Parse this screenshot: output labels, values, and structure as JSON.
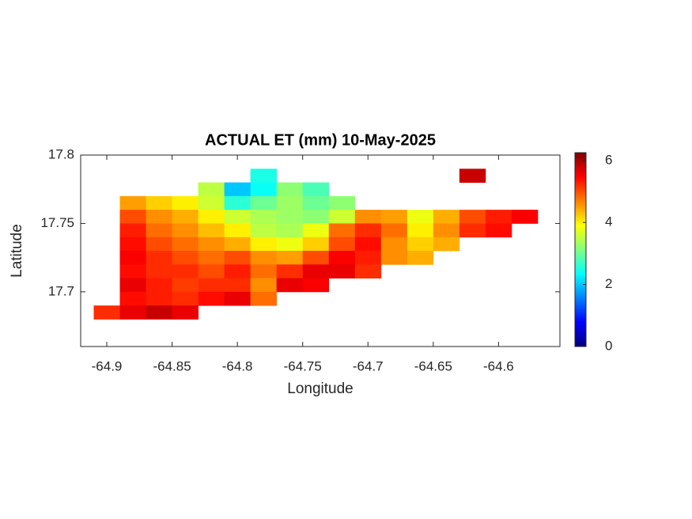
{
  "chart_data": {
    "type": "heatmap",
    "title": "ACTUAL ET (mm) 10-May-2025",
    "x_label": "Longitude",
    "y_label": "Latitude",
    "colormap": "jet",
    "x": [
      -64.9,
      -64.88,
      -64.86,
      -64.84,
      -64.82,
      -64.8,
      -64.78,
      -64.76,
      -64.74,
      -64.72,
      -64.7,
      -64.68,
      -64.66,
      -64.64,
      -64.62,
      -64.6,
      -64.58,
      -64.56
    ],
    "y": [
      17.785,
      17.775,
      17.765,
      17.755,
      17.745,
      17.735,
      17.725,
      17.715,
      17.705,
      17.695,
      17.685
    ],
    "values": [
      [
        null,
        null,
        null,
        null,
        null,
        null,
        2.5,
        null,
        null,
        null,
        null,
        null,
        null,
        null,
        5.8,
        null,
        null,
        null
      ],
      [
        null,
        null,
        null,
        null,
        3.5,
        2.0,
        2.4,
        3.2,
        2.8,
        null,
        null,
        null,
        null,
        null,
        null,
        null,
        null,
        null
      ],
      [
        null,
        4.5,
        4.2,
        4.0,
        3.6,
        2.6,
        3.0,
        3.3,
        3.0,
        3.2,
        null,
        null,
        null,
        null,
        null,
        null,
        null,
        null
      ],
      [
        null,
        5.0,
        4.6,
        4.4,
        4.0,
        3.6,
        3.4,
        3.3,
        3.2,
        3.6,
        4.6,
        4.5,
        3.8,
        4.4,
        5.0,
        5.3,
        5.5,
        null
      ],
      [
        null,
        5.3,
        4.8,
        4.6,
        4.3,
        4.0,
        3.5,
        3.4,
        3.8,
        4.8,
        5.2,
        4.8,
        4.0,
        4.6,
        5.2,
        5.4,
        null,
        null
      ],
      [
        null,
        5.4,
        5.0,
        4.8,
        4.6,
        4.4,
        4.0,
        3.8,
        4.2,
        5.0,
        5.4,
        4.6,
        4.2,
        4.4,
        null,
        null,
        null,
        null
      ],
      [
        null,
        5.5,
        5.2,
        5.0,
        4.8,
        5.0,
        4.6,
        4.5,
        5.0,
        5.5,
        5.3,
        4.6,
        4.4,
        null,
        null,
        null,
        null,
        null
      ],
      [
        null,
        5.4,
        5.2,
        5.2,
        5.0,
        5.3,
        4.8,
        5.2,
        5.6,
        5.6,
        5.2,
        null,
        null,
        null,
        null,
        null,
        null,
        null
      ],
      [
        null,
        5.6,
        5.3,
        5.1,
        5.2,
        5.2,
        4.6,
        5.6,
        5.5,
        null,
        null,
        null,
        null,
        null,
        null,
        null,
        null,
        null
      ],
      [
        null,
        5.4,
        5.3,
        5.2,
        5.4,
        5.6,
        4.8,
        null,
        null,
        null,
        null,
        null,
        null,
        null,
        null,
        null,
        null,
        null
      ],
      [
        5.2,
        5.6,
        5.8,
        5.6,
        null,
        null,
        null,
        null,
        null,
        null,
        null,
        null,
        null,
        null,
        null,
        null,
        null,
        null
      ]
    ],
    "xlim": [
      -64.92,
      -64.553
    ],
    "ylim": [
      17.66,
      17.8
    ],
    "xticks": [
      -64.9,
      -64.85,
      -64.8,
      -64.75,
      -64.7,
      -64.65,
      -64.6
    ],
    "yticks": [
      17.7,
      17.75,
      17.8
    ],
    "clim": [
      0,
      6.25
    ],
    "cticks": [
      0,
      2,
      4,
      6
    ]
  }
}
